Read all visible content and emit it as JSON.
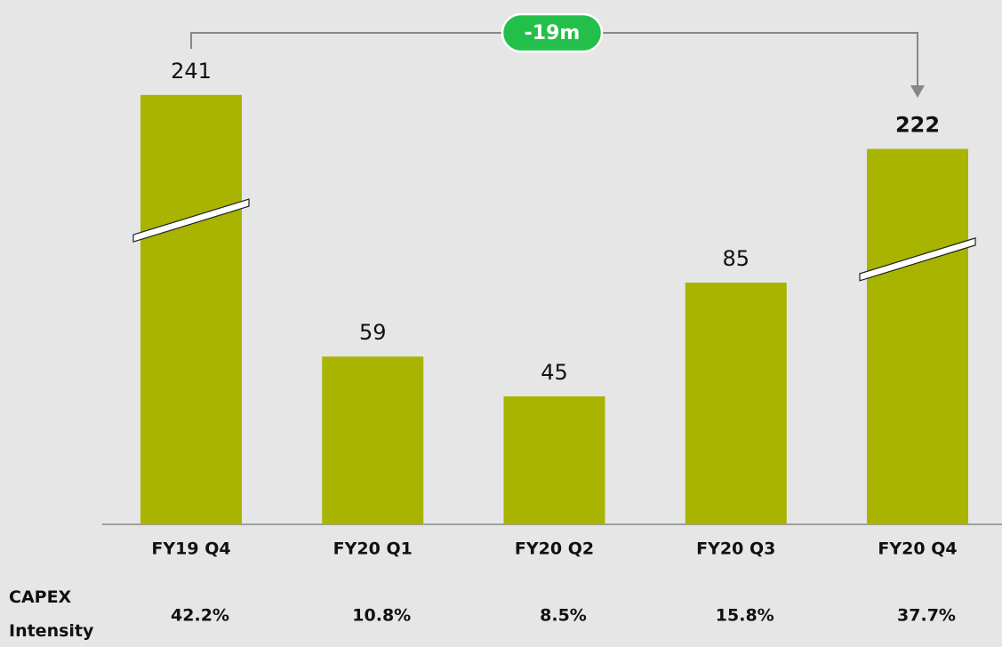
{
  "chart_data": {
    "type": "bar",
    "categories": [
      "FY19 Q4",
      "FY20 Q1",
      "FY20 Q2",
      "FY20 Q3",
      "FY20 Q4"
    ],
    "values": [
      241,
      59,
      45,
      85,
      222
    ],
    "color": "#a8b400",
    "annotation": "-19m",
    "intensity": {
      "label": "CAPEX Intensity",
      "values": [
        "42.2%",
        "10.8%",
        "8.5%",
        "15.8%",
        "37.7%"
      ]
    }
  }
}
